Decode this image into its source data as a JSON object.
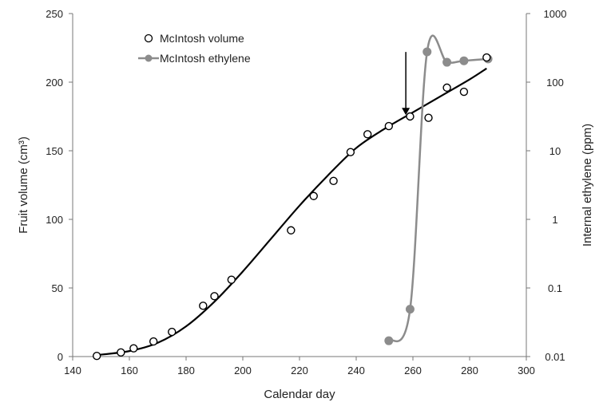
{
  "chart_data": {
    "type": "scatter",
    "xlabel": "Calendar day",
    "ylabel": "Fruit volume (cm³)",
    "y2label": "Internal ethylene (ppm)",
    "xlim": [
      140,
      300
    ],
    "ylim": [
      0,
      250
    ],
    "y2lim": [
      0.01,
      1000
    ],
    "y2scale": "log",
    "grid": false,
    "legend": "top-left",
    "x_ticks": [
      "140",
      "160",
      "180",
      "200",
      "220",
      "240",
      "260",
      "280",
      "300"
    ],
    "y_ticks": [
      "0",
      "50",
      "100",
      "150",
      "200",
      "250"
    ],
    "y2_ticks": [
      "0.01",
      "0.1",
      "1",
      "10",
      "100",
      "1000"
    ],
    "series": [
      {
        "name": "McIntosh volume",
        "marker": "open-circle",
        "axis": "left",
        "color": "#000000",
        "x": [
          148.5,
          157,
          161.5,
          168.5,
          175,
          186,
          190,
          196,
          217,
          225,
          232,
          238,
          244,
          251.5,
          259,
          265.5,
          272,
          278,
          286
        ],
        "y": [
          0.5,
          3,
          6,
          11,
          18,
          37,
          44,
          56,
          92,
          117,
          128,
          149,
          162,
          168,
          175,
          174,
          196,
          193,
          218
        ]
      },
      {
        "name": "McIntosh ethylene",
        "marker": "filled-circle-line",
        "axis": "right",
        "color": "#8c8c8c",
        "x": [
          251.5,
          259,
          265,
          272,
          278,
          286.5
        ],
        "y": [
          0.017,
          0.049,
          277,
          195,
          205,
          218
        ]
      }
    ],
    "fit_curve": {
      "axis": "left",
      "color": "#000000",
      "x": [
        148,
        160,
        170,
        180,
        190,
        200,
        210,
        220,
        230,
        240,
        250,
        260,
        270,
        280,
        286
      ],
      "y": [
        1,
        4,
        10,
        22,
        40,
        62,
        86,
        110,
        132,
        152,
        166,
        178,
        190,
        202,
        210
      ]
    },
    "annotations": [
      {
        "type": "arrow",
        "x": 257.5,
        "y_from": 222,
        "y_to": 176
      }
    ]
  }
}
